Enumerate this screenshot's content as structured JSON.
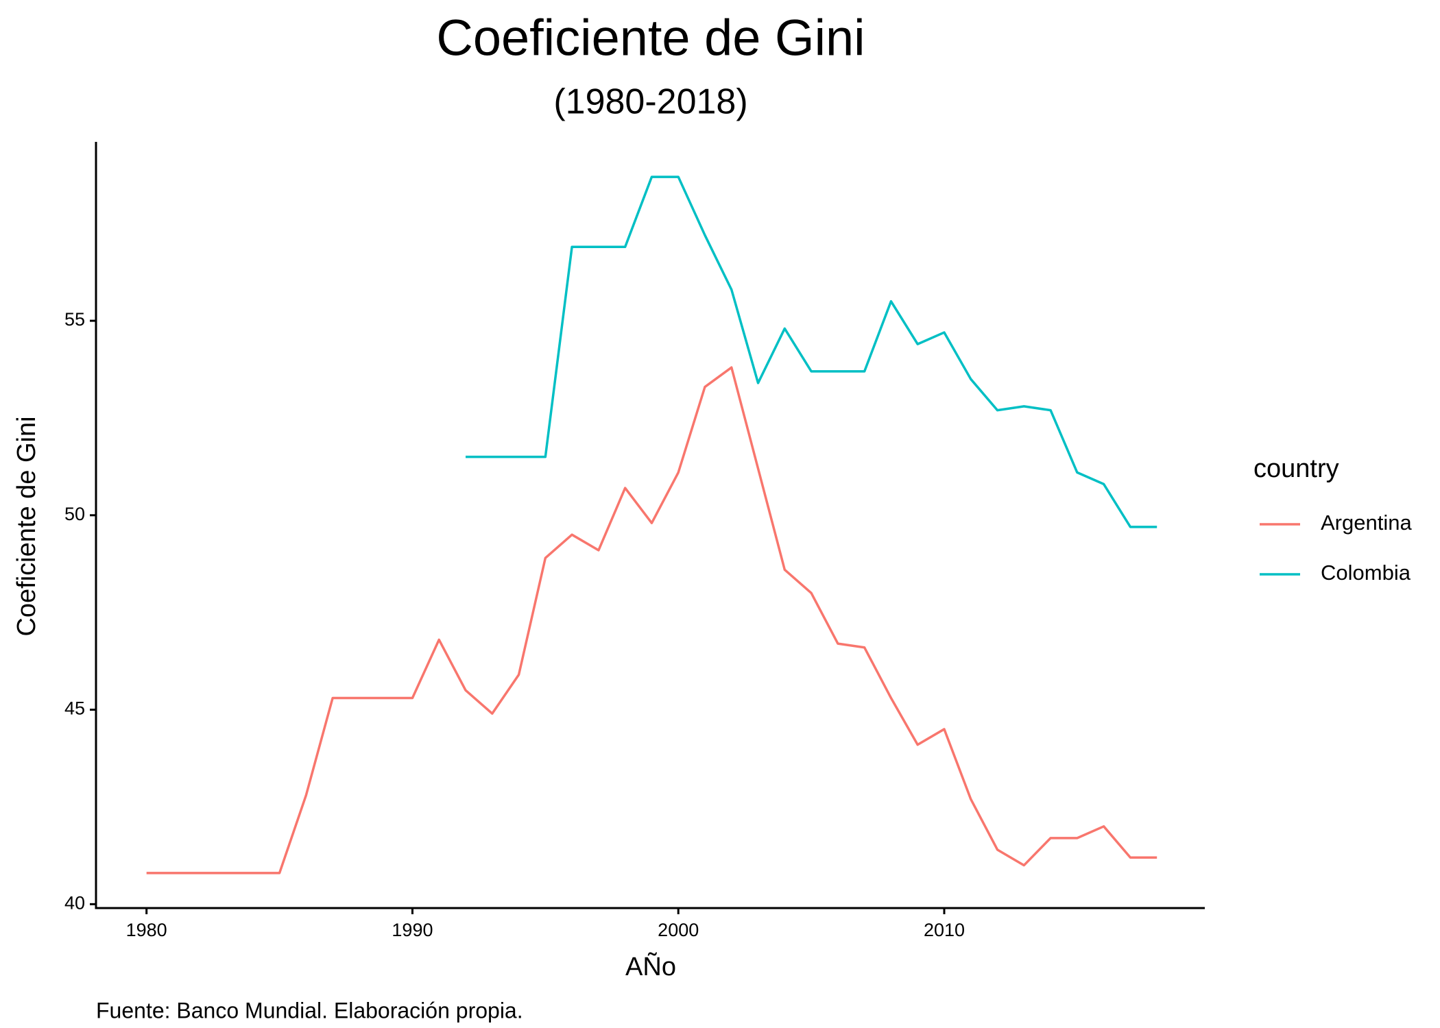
{
  "chart_data": {
    "type": "line",
    "title": "Coeficiente de Gini",
    "subtitle": "(1980-2018)",
    "x_label": "AÑo",
    "y_label": "Coeficiente de Gini",
    "caption": "Fuente: Banco Mundial. Elaboración propia.",
    "legend_title": "country",
    "legend_position": "right",
    "grid": false,
    "x": [
      1980,
      1981,
      1982,
      1983,
      1984,
      1985,
      1986,
      1987,
      1988,
      1989,
      1990,
      1991,
      1992,
      1993,
      1994,
      1995,
      1996,
      1997,
      1998,
      1999,
      2000,
      2001,
      2002,
      2003,
      2004,
      2005,
      2006,
      2007,
      2008,
      2009,
      2010,
      2011,
      2012,
      2013,
      2014,
      2015,
      2016,
      2017,
      2018
    ],
    "series": [
      {
        "name": "Argentina",
        "color": "#f8766d",
        "values": [
          40.8,
          40.8,
          40.8,
          40.8,
          40.8,
          40.8,
          42.8,
          45.3,
          45.3,
          45.3,
          45.3,
          46.8,
          45.5,
          44.9,
          45.9,
          48.9,
          49.5,
          49.1,
          50.7,
          49.8,
          51.1,
          53.3,
          53.8,
          51.2,
          48.6,
          48.0,
          46.7,
          46.6,
          45.3,
          44.1,
          44.5,
          42.7,
          41.4,
          41.0,
          41.7,
          41.7,
          42.0,
          41.2,
          41.2
        ]
      },
      {
        "name": "Colombia",
        "color": "#00bfc4",
        "values": [
          null,
          null,
          null,
          null,
          null,
          null,
          null,
          null,
          null,
          null,
          null,
          null,
          51.5,
          51.5,
          51.5,
          51.5,
          56.9,
          56.9,
          56.9,
          58.7,
          58.7,
          57.2,
          55.8,
          53.4,
          54.8,
          53.7,
          53.7,
          53.7,
          55.5,
          54.4,
          54.7,
          53.5,
          52.7,
          52.8,
          52.7,
          51.1,
          50.8,
          49.7,
          49.7
        ]
      }
    ],
    "xlim": [
      1978.1,
      2019.8
    ],
    "xticks": [
      1980,
      1990,
      2000,
      2010
    ],
    "ylim": [
      39.9,
      59.6
    ],
    "yticks": [
      40,
      45,
      50,
      55
    ]
  }
}
